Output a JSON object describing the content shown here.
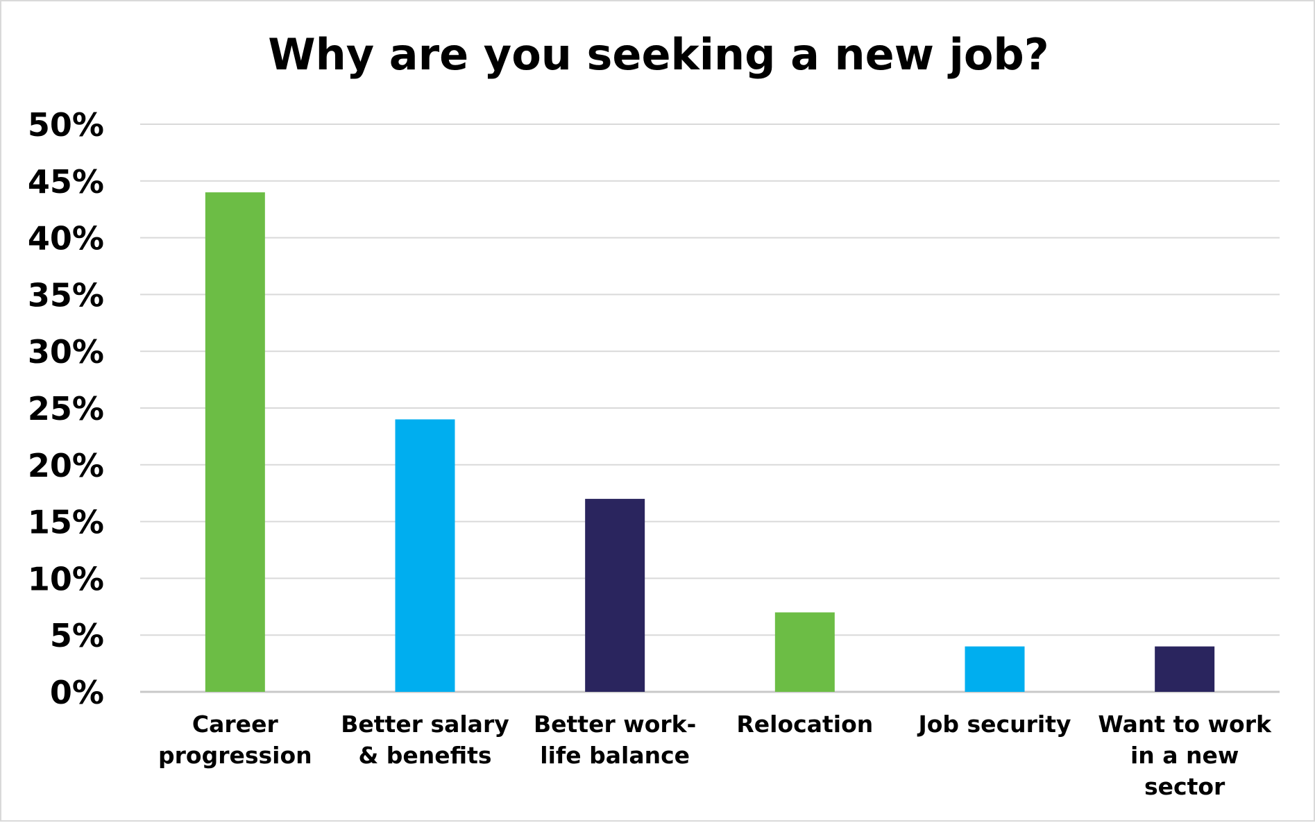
{
  "chart_data": {
    "type": "bar",
    "title": "Why are you seeking a new job?",
    "categories": [
      [
        "Career",
        "progression"
      ],
      [
        "Better salary",
        "& benefits"
      ],
      [
        "Better work-",
        "life balance"
      ],
      [
        "Relocation"
      ],
      [
        "Job security"
      ],
      [
        "Want to work",
        "in a new",
        "sector"
      ]
    ],
    "values": [
      44,
      24,
      17,
      7,
      4,
      4
    ],
    "colors": [
      "#6cbd45",
      "#00aeef",
      "#2a255e",
      "#6cbd45",
      "#00aeef",
      "#2a255e"
    ],
    "ylim": [
      0,
      50
    ],
    "yticks": [
      "0%",
      "5%",
      "10%",
      "15%",
      "20%",
      "25%",
      "30%",
      "35%",
      "40%",
      "45%",
      "50%"
    ],
    "grid": true,
    "xlabel": "",
    "ylabel": ""
  }
}
